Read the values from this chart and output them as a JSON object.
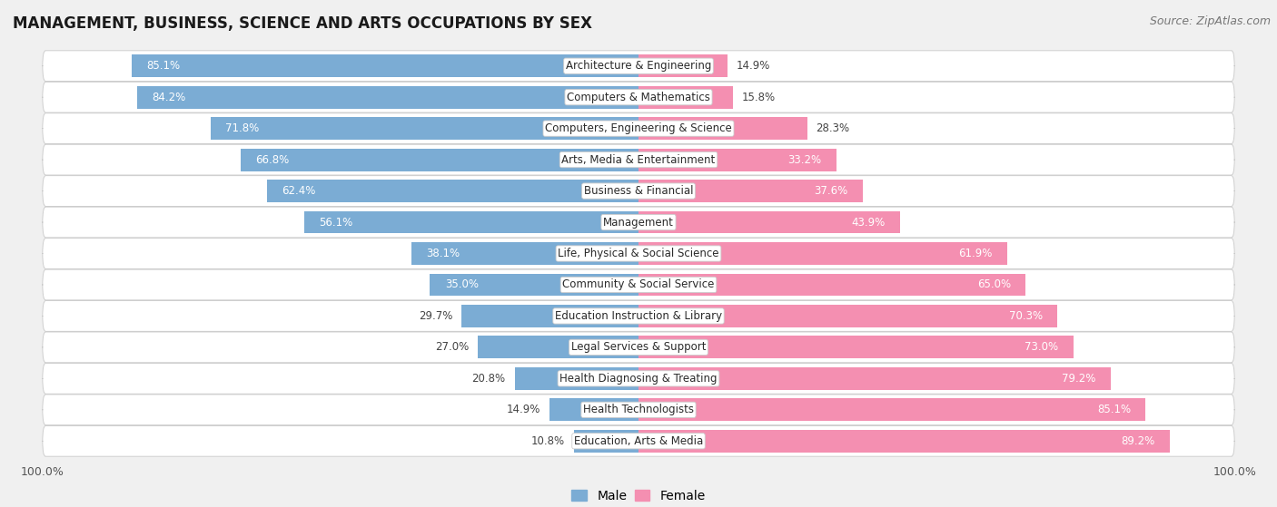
{
  "title": "MANAGEMENT, BUSINESS, SCIENCE AND ARTS OCCUPATIONS BY SEX",
  "source": "Source: ZipAtlas.com",
  "categories": [
    "Architecture & Engineering",
    "Computers & Mathematics",
    "Computers, Engineering & Science",
    "Arts, Media & Entertainment",
    "Business & Financial",
    "Management",
    "Life, Physical & Social Science",
    "Community & Social Service",
    "Education Instruction & Library",
    "Legal Services & Support",
    "Health Diagnosing & Treating",
    "Health Technologists",
    "Education, Arts & Media"
  ],
  "male": [
    85.1,
    84.2,
    71.8,
    66.8,
    62.4,
    56.1,
    38.1,
    35.0,
    29.7,
    27.0,
    20.8,
    14.9,
    10.8
  ],
  "female": [
    14.9,
    15.8,
    28.3,
    33.2,
    37.6,
    43.9,
    61.9,
    65.0,
    70.3,
    73.0,
    79.2,
    85.1,
    89.2
  ],
  "male_color": "#7bacd4",
  "female_color": "#f48fb1",
  "bg_color": "#f0f0f0",
  "bar_bg_color": "#ffffff",
  "title_fontsize": 12,
  "source_fontsize": 9,
  "label_fontsize": 8.5,
  "pct_fontsize": 8.5,
  "legend_fontsize": 10
}
